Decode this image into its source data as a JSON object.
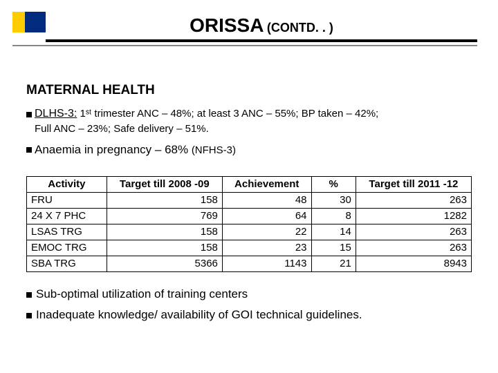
{
  "title": {
    "main": "ORISSA",
    "sub": "(CONTD. . )"
  },
  "section_header": "MATERNAL HEALTH",
  "dlhs": {
    "label": "DLHS-3:",
    "line1": " 1ˢᵗ trimester ANC – 48%; at least 3 ANC – 55%; BP taken – 42%;",
    "line2": "Full ANC – 23%; Safe delivery – 51%."
  },
  "anaemia": {
    "text": "Anaemia in pregnancy – 68% ",
    "src": "(NFHS-3)"
  },
  "table": {
    "columns": [
      "Activity",
      "Target till 2008 -09",
      "Achievement",
      "%",
      "Target till 2011 -12"
    ],
    "col_widths": [
      "18%",
      "26%",
      "20%",
      "10%",
      "26%"
    ],
    "rows": [
      [
        "FRU",
        "158",
        "48",
        "30",
        "263"
      ],
      [
        "24 X 7 PHC",
        "769",
        "64",
        "8",
        "1282"
      ],
      [
        "LSAS TRG",
        "158",
        "22",
        "14",
        "263"
      ],
      [
        "EMOC TRG",
        "158",
        "23",
        "15",
        "263"
      ],
      [
        "SBA TRG",
        "5366",
        "1143",
        "21",
        "8943"
      ]
    ]
  },
  "footnotes": [
    " Sub-optimal utilization of training centers",
    "Inadequate knowledge/ availability of GOI technical guidelines."
  ],
  "colors": {
    "accent_yellow": "#ffcc00",
    "accent_blue": "#002b7f"
  }
}
